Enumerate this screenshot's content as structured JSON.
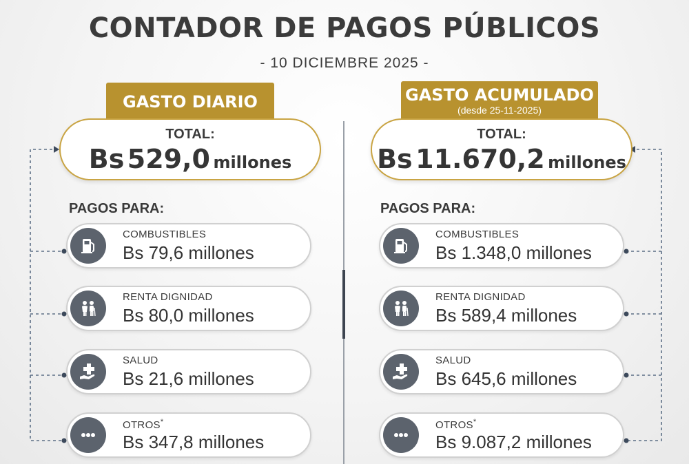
{
  "header": {
    "title": "CONTADOR DE PAGOS PÚBLICOS",
    "date": "- 10 DICIEMBRE 2025 -"
  },
  "currency_prefix": "Bs",
  "unit": "millones",
  "daily": {
    "tab_label": "GASTO DIARIO",
    "total_label": "TOTAL:",
    "total_amount": "529,0",
    "pagos_label": "PAGOS PARA:",
    "items": [
      {
        "category": "COMBUSTIBLES",
        "amount": "79,6",
        "icon": "fuel-pump-icon"
      },
      {
        "category": "RENTA DIGNIDAD",
        "amount": "80,0",
        "icon": "elderly-couple-icon"
      },
      {
        "category": "SALUD",
        "amount": "21,6",
        "icon": "health-care-icon"
      },
      {
        "category": "OTROS",
        "asterisk": "*",
        "amount": "347,8",
        "icon": "more-dots-icon"
      }
    ]
  },
  "cumulative": {
    "tab_label": "GASTO ACUMULADO",
    "tab_sublabel": "(desde 25-11-2025)",
    "total_label": "TOTAL:",
    "total_amount": "11.670,2",
    "pagos_label": "PAGOS PARA:",
    "items": [
      {
        "category": "COMBUSTIBLES",
        "amount": "1.348,0",
        "icon": "fuel-pump-icon"
      },
      {
        "category": "RENTA DIGNIDAD",
        "amount": "589,4",
        "icon": "elderly-couple-icon"
      },
      {
        "category": "SALUD",
        "amount": "645,6",
        "icon": "health-care-icon"
      },
      {
        "category": "OTROS",
        "asterisk": "*",
        "amount": "9.087,2",
        "icon": "more-dots-icon"
      }
    ]
  },
  "colors": {
    "gold": "#b8922f",
    "icon_bg": "#5c636d",
    "text": "#3a3a3a",
    "connector": "#5c6f86"
  }
}
